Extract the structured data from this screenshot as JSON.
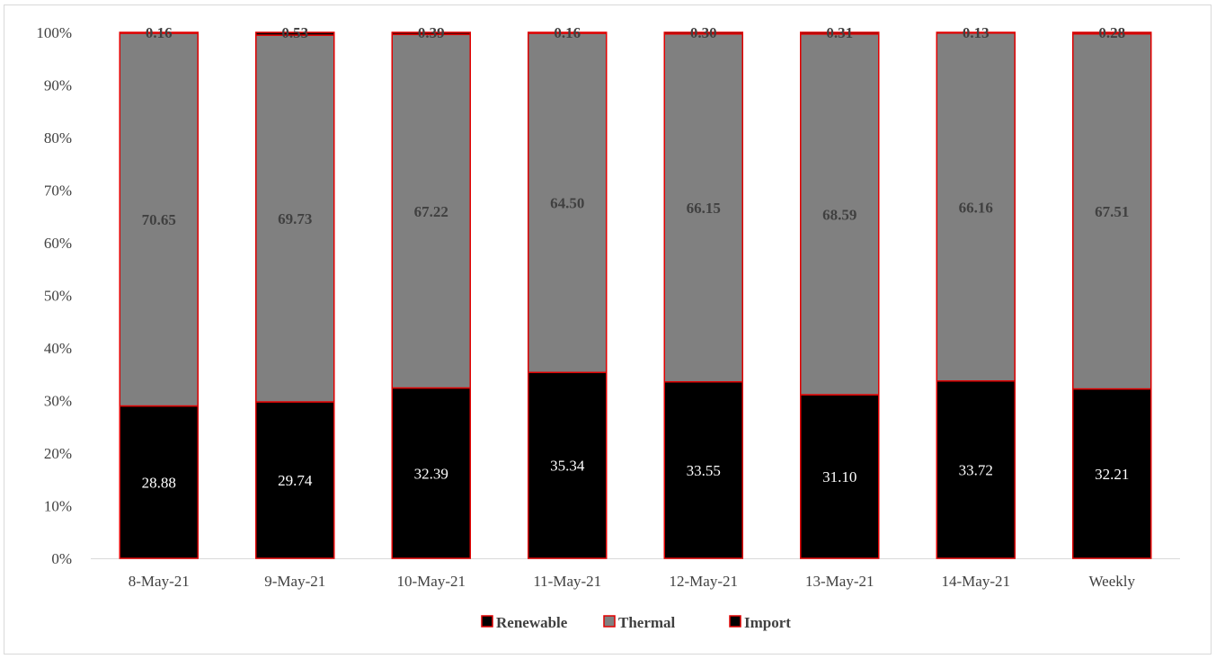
{
  "chart_data": {
    "type": "bar",
    "stacked": true,
    "percent_stacked": true,
    "categories": [
      "8-May-21",
      "9-May-21",
      "10-May-21",
      "11-May-21",
      "12-May-21",
      "13-May-21",
      "14-May-21",
      "Weekly"
    ],
    "series": [
      {
        "name": "Renewable",
        "color": "#000000",
        "label_color": "#ffffff",
        "values": [
          28.88,
          29.74,
          32.39,
          35.34,
          33.55,
          31.1,
          33.72,
          32.21
        ],
        "labels": [
          "28.88",
          "29.74",
          "32.39",
          "35.34",
          "33.55",
          "31.10",
          "33.72",
          "32.21"
        ]
      },
      {
        "name": "Thermal",
        "color": "#808080",
        "label_color": "#404040",
        "values": [
          70.65,
          69.73,
          67.22,
          64.5,
          66.15,
          68.59,
          66.16,
          67.51
        ],
        "labels": [
          "70.65",
          "69.73",
          "67.22",
          "64.50",
          "66.15",
          "68.59",
          "66.16",
          "67.51"
        ]
      },
      {
        "name": "Import",
        "color": "#000000",
        "label_color": "#404040",
        "values": [
          0.16,
          0.53,
          0.39,
          0.16,
          0.3,
          0.31,
          0.13,
          0.28
        ],
        "labels": [
          "0.16",
          "0.53",
          "0.39",
          "0.16",
          "0.30",
          "0.31",
          "0.13",
          "0.28"
        ]
      }
    ],
    "bar_outline_color": "#e00000",
    "y_ticks": [
      "0%",
      "10%",
      "20%",
      "30%",
      "40%",
      "50%",
      "60%",
      "70%",
      "80%",
      "90%",
      "100%"
    ],
    "ylim": [
      0,
      100
    ],
    "grid": false,
    "legend_position": "bottom"
  }
}
